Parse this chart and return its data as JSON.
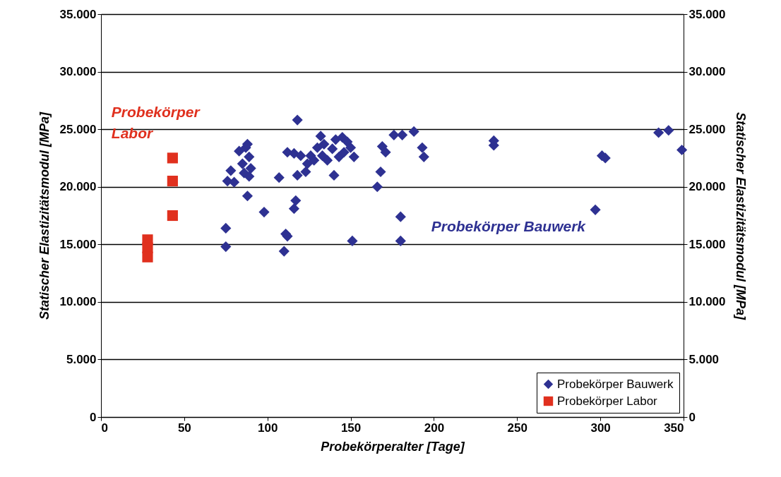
{
  "chart_data": {
    "type": "scatter",
    "xlabel": "Probekörperalter [Tage]",
    "ylabel": "Statischer Elastizitätsmodul [MPa]",
    "y2label": "Statischer Elastizitätsmodul [MPa]",
    "xlim": [
      0,
      350
    ],
    "xticks": [
      0,
      50,
      100,
      150,
      200,
      250,
      300,
      350
    ],
    "ylim": [
      0,
      35000
    ],
    "yticks": [
      {
        "value": 0,
        "label": "0"
      },
      {
        "value": 5000,
        "label": "5.000"
      },
      {
        "value": 10000,
        "label": "10.000"
      },
      {
        "value": 15000,
        "label": "15.000"
      },
      {
        "value": 20000,
        "label": "20.000"
      },
      {
        "value": 25000,
        "label": "25.000"
      },
      {
        "value": 30000,
        "label": "30.000"
      },
      {
        "value": 35000,
        "label": "35.000"
      }
    ],
    "y2lim": [
      0,
      35000
    ],
    "y2ticks": [
      {
        "value": 0,
        "label": "0"
      },
      {
        "value": 5000,
        "label": "5.000"
      },
      {
        "value": 10000,
        "label": "10.000"
      },
      {
        "value": 15000,
        "label": "15.000"
      },
      {
        "value": 20000,
        "label": "20.000"
      },
      {
        "value": 25000,
        "label": "25.000"
      },
      {
        "value": 30000,
        "label": "30.000"
      },
      {
        "value": 35000,
        "label": "35.000"
      }
    ],
    "grid": "y",
    "legend": "bottom right",
    "series": [
      {
        "name": "Probekörper Bauwerk",
        "color": "#2e3192",
        "marker": "diamond",
        "x": [
          75,
          75,
          76,
          78,
          80,
          83,
          85,
          86,
          87,
          88,
          89,
          88,
          90,
          89,
          98,
          107,
          111,
          112,
          110,
          112,
          116,
          117,
          116,
          118,
          118,
          120,
          123,
          124,
          126,
          128,
          130,
          132,
          133,
          134,
          136,
          139,
          140,
          141,
          143,
          145,
          146,
          148,
          150,
          152,
          151,
          166,
          168,
          169,
          171,
          176,
          181,
          180,
          180,
          188,
          193,
          194,
          236,
          236,
          297,
          301,
          303,
          335,
          341,
          349
        ],
        "values": [
          14800,
          16400,
          20500,
          21400,
          20400,
          23100,
          22000,
          21200,
          23400,
          23700,
          22600,
          19200,
          21600,
          20900,
          17800,
          20800,
          15900,
          15700,
          14400,
          23000,
          18100,
          18800,
          22900,
          25800,
          21000,
          22700,
          21300,
          22000,
          22700,
          22300,
          23400,
          24400,
          22700,
          23700,
          22300,
          23300,
          21000,
          24100,
          22600,
          24300,
          23000,
          23900,
          23400,
          22600,
          15300,
          20000,
          21300,
          23500,
          23000,
          24500,
          24500,
          17400,
          15300,
          24800,
          23400,
          22600,
          23600,
          24000,
          18000,
          22700,
          22500,
          24700,
          24900,
          23200
        ]
      },
      {
        "name": "Probekörper Labor",
        "color": "#e0301e",
        "marker": "square",
        "x": [
          43,
          43,
          43,
          28,
          28,
          28
        ],
        "values": [
          22500,
          20500,
          17500,
          15400,
          14700,
          13900
        ]
      }
    ],
    "annotations": [
      "Probekörper Bauwerk",
      "Probekörper\nLabor"
    ]
  }
}
